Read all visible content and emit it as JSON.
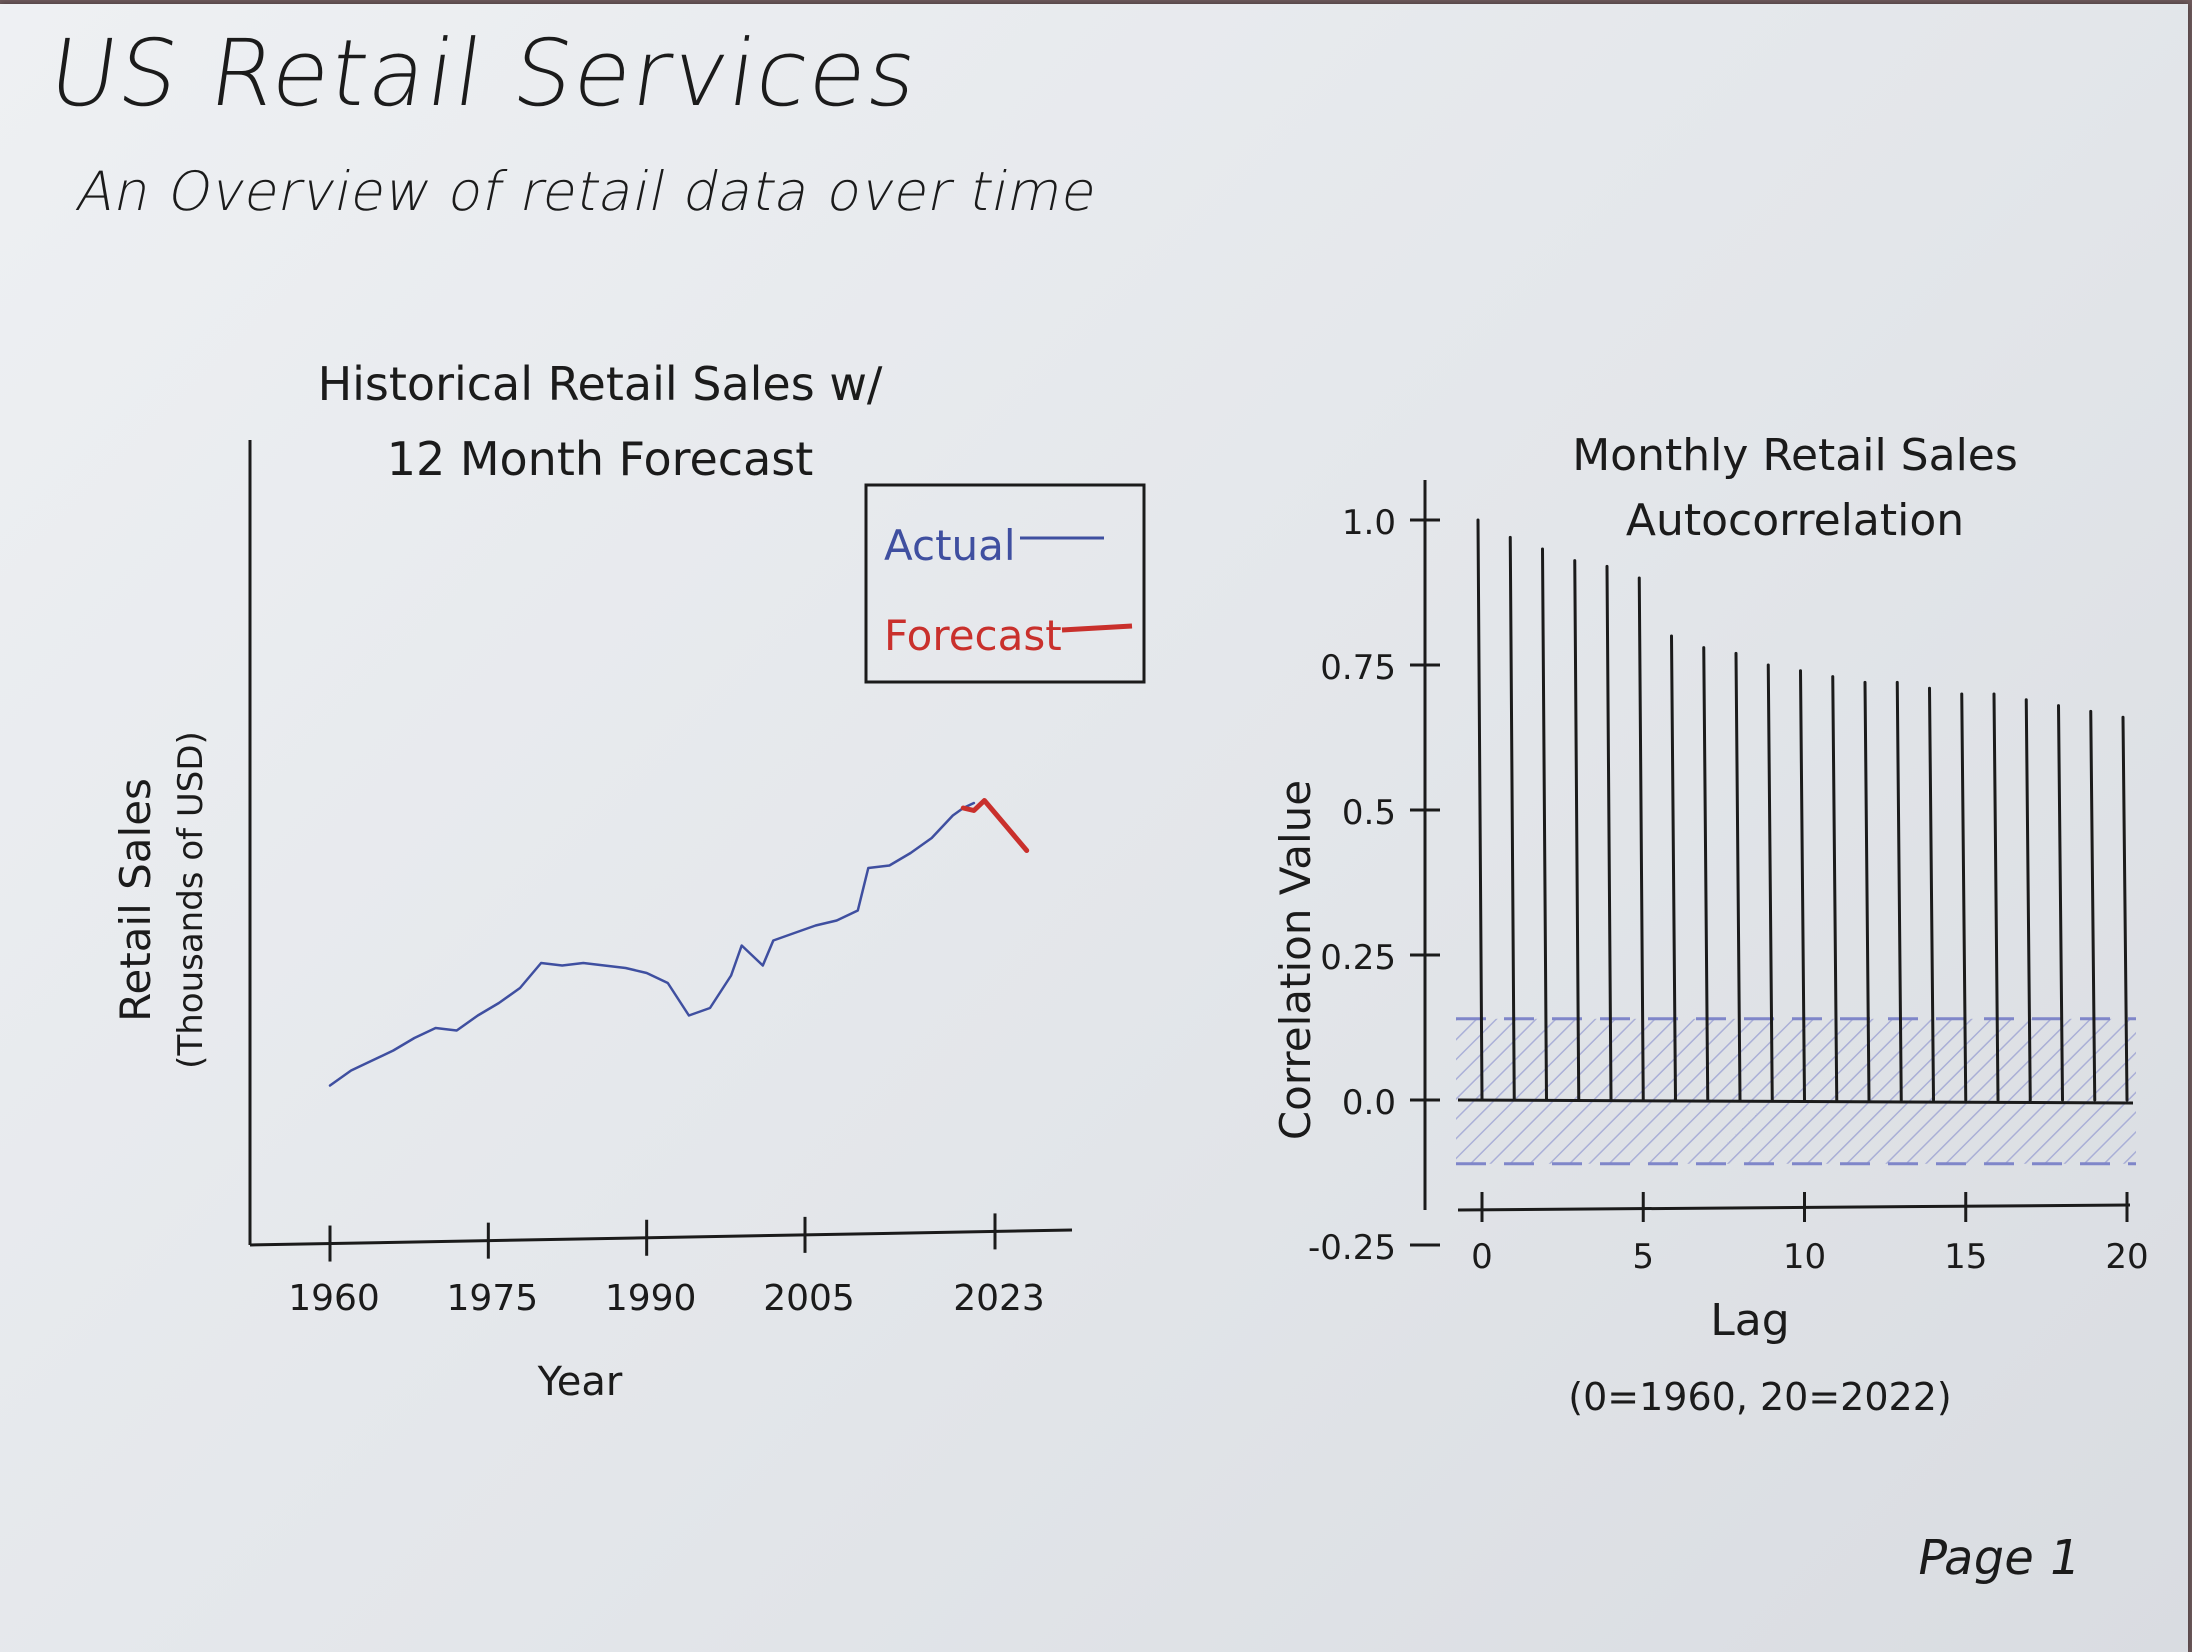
{
  "page": {
    "title": "US Retail Services",
    "subtitle": "An Overview of retail data over time",
    "page_label": "Page 1"
  },
  "colors": {
    "ink": "#1b1b1b",
    "actual": "#3f4fa0",
    "forecast": "#c9302c",
    "band": "#7f86c9"
  },
  "chart_data": [
    {
      "type": "line",
      "title": "Historical Retail Sales w/ 12 Month Forecast",
      "xlabel": "Year",
      "ylabel": "Retail Sales (Thousands of USD)",
      "x_ticks": [
        "1960",
        "1975",
        "1990",
        "2005",
        "2023"
      ],
      "xlim": [
        1960,
        2027
      ],
      "legend": {
        "placement": "top-right",
        "entries": [
          "Actual",
          "Forecast"
        ]
      },
      "series": [
        {
          "name": "Actual",
          "x": [
            1960,
            1962,
            1964,
            1966,
            1968,
            1970,
            1972,
            1974,
            1976,
            1978,
            1980,
            1982,
            1984,
            1986,
            1988,
            1990,
            1992,
            1994,
            1996,
            1998,
            1999,
            2001,
            2002,
            2004,
            2006,
            2008,
            2010,
            2011,
            2013,
            2015,
            2017,
            2019,
            2020,
            2021
          ],
          "values": [
            0.03,
            0.09,
            0.13,
            0.17,
            0.22,
            0.26,
            0.25,
            0.31,
            0.36,
            0.42,
            0.52,
            0.51,
            0.52,
            0.51,
            0.5,
            0.48,
            0.44,
            0.31,
            0.34,
            0.47,
            0.59,
            0.51,
            0.61,
            0.64,
            0.67,
            0.69,
            0.73,
            0.9,
            0.91,
            0.96,
            1.02,
            1.11,
            1.14,
            1.16
          ]
        },
        {
          "name": "Forecast",
          "x": [
            2020,
            2021,
            2022,
            2023,
            2024,
            2025,
            2026
          ],
          "values": [
            1.14,
            1.13,
            1.17,
            1.12,
            1.07,
            1.02,
            0.97
          ]
        }
      ]
    },
    {
      "type": "bar",
      "title": "Monthly Retail Sales Autocorrelation",
      "xlabel": "Lag",
      "xlabel_note": "(0=1960, 20=2022)",
      "ylabel": "Correlation Value",
      "x_ticks": [
        "0",
        "5",
        "10",
        "15",
        "20"
      ],
      "y_ticks": [
        "-0.25",
        "0.0",
        "0.25",
        "0.5",
        "0.75",
        "1.0"
      ],
      "ylim": [
        -0.25,
        1.0
      ],
      "categories": [
        0,
        1,
        2,
        3,
        4,
        5,
        6,
        7,
        8,
        9,
        10,
        11,
        12,
        13,
        14,
        15,
        16,
        17,
        18,
        19,
        20
      ],
      "values": [
        1.0,
        0.97,
        0.95,
        0.93,
        0.92,
        0.9,
        0.8,
        0.78,
        0.77,
        0.75,
        0.74,
        0.73,
        0.72,
        0.72,
        0.71,
        0.7,
        0.7,
        0.69,
        0.68,
        0.67,
        0.66
      ],
      "confidence_band": [
        -0.11,
        0.14
      ]
    }
  ]
}
